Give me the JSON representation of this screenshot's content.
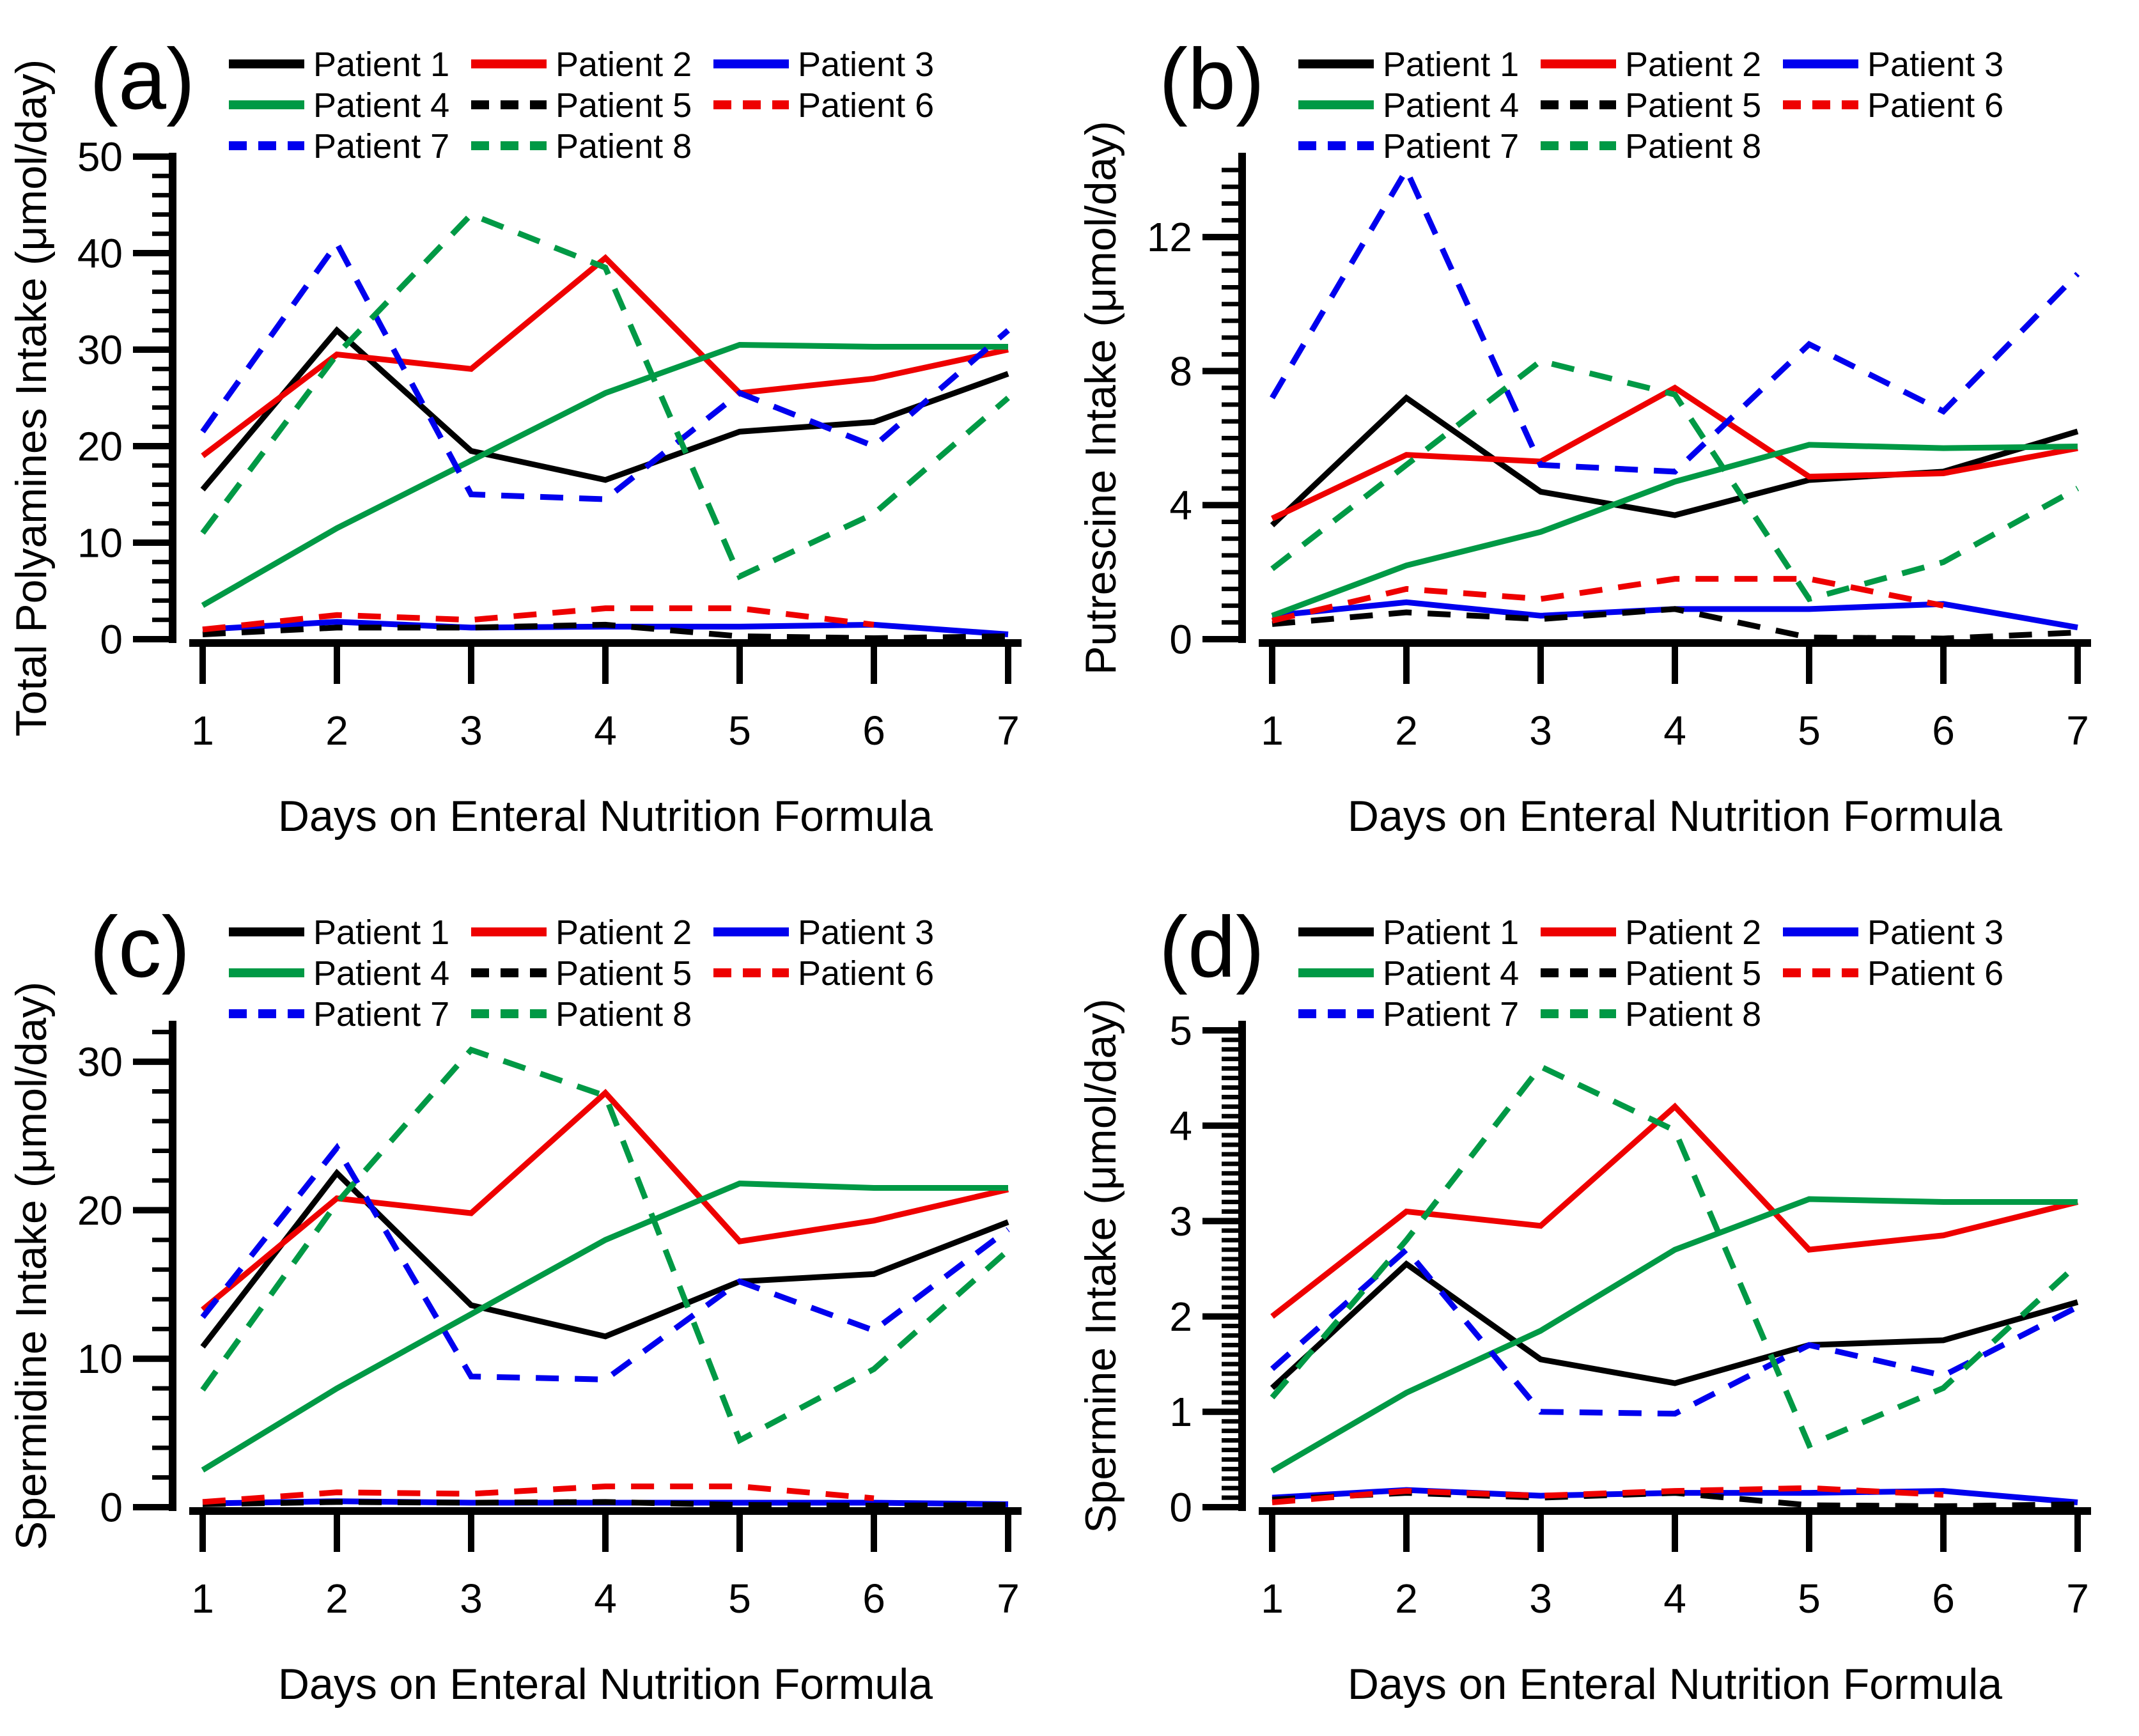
{
  "figure": {
    "background": "#ffffff",
    "xlabel": "Days on Enteral Nutrition Formula",
    "x_tick_labels": [
      "1",
      "2",
      "3",
      "4",
      "5",
      "6",
      "7"
    ]
  },
  "legend": {
    "position": "top",
    "columns": 3,
    "items": [
      {
        "label": "Patient 1",
        "color": "#000000",
        "dashed": false
      },
      {
        "label": "Patient 2",
        "color": "#ee0000",
        "dashed": false
      },
      {
        "label": "Patient 3",
        "color": "#0000ee",
        "dashed": false
      },
      {
        "label": "Patient 4",
        "color": "#009945",
        "dashed": false
      },
      {
        "label": "Patient 5",
        "color": "#000000",
        "dashed": true
      },
      {
        "label": "Patient 6",
        "color": "#ee0000",
        "dashed": true
      },
      {
        "label": "Patient 7",
        "color": "#0000ee",
        "dashed": true
      },
      {
        "label": "Patient 8",
        "color": "#009945",
        "dashed": true
      }
    ]
  },
  "chart_data": [
    {
      "type": "line",
      "panel_letter": "(a)",
      "ylabel": "Total Polyamines Intake (μmol/day)",
      "xlabel": "Days on Enteral Nutrition Formula",
      "x": [
        1,
        2,
        3,
        4,
        5,
        6,
        7
      ],
      "xlim": [
        1,
        7
      ],
      "ylim": [
        0,
        50
      ],
      "axis_top": 50,
      "yticks": [
        0,
        10,
        20,
        30,
        40,
        50
      ],
      "y_minor_step": 2,
      "grid": false,
      "legend_position": "top",
      "series": [
        {
          "name": "Patient 1",
          "color": "#000000",
          "dashed": false,
          "values": [
            15.5,
            32,
            19.5,
            16.5,
            21.5,
            22.5,
            27.5
          ]
        },
        {
          "name": "Patient 2",
          "color": "#ee0000",
          "dashed": false,
          "values": [
            19,
            29.5,
            28,
            39.5,
            25.5,
            27,
            30
          ]
        },
        {
          "name": "Patient 3",
          "color": "#0000ee",
          "dashed": false,
          "values": [
            1,
            1.8,
            1.2,
            1.3,
            1.3,
            1.5,
            0.5
          ]
        },
        {
          "name": "Patient 4",
          "color": "#009945",
          "dashed": false,
          "values": [
            3.5,
            11.5,
            18.5,
            25.5,
            30.5,
            30.3,
            30.3
          ]
        },
        {
          "name": "Patient 5",
          "color": "#000000",
          "dashed": true,
          "values": [
            0.5,
            1.2,
            1.2,
            1.5,
            0.3,
            0.1,
            0.3
          ]
        },
        {
          "name": "Patient 6",
          "color": "#ee0000",
          "dashed": true,
          "values": [
            1,
            2.5,
            2,
            3.2,
            3.2,
            1.5
          ]
        },
        {
          "name": "Patient 7",
          "color": "#0000ee",
          "dashed": true,
          "values": [
            21.5,
            41,
            15,
            14.5,
            25.5,
            20,
            32
          ]
        },
        {
          "name": "Patient 8",
          "color": "#009945",
          "dashed": true,
          "values": [
            11,
            29.5,
            44,
            38.5,
            6.5,
            13,
            25
          ]
        }
      ]
    },
    {
      "type": "line",
      "panel_letter": "(b)",
      "ylabel": "Putrescine Intake (μmol/day)",
      "xlabel": "Days on Enteral Nutrition Formula",
      "x": [
        1,
        2,
        3,
        4,
        5,
        6,
        7
      ],
      "xlim": [
        1,
        7
      ],
      "ylim": [
        0,
        14
      ],
      "axis_top": 14.4,
      "yticks": [
        0,
        4,
        8,
        12
      ],
      "y_minor_step": 0.5,
      "grid": false,
      "legend_position": "top",
      "series": [
        {
          "name": "Patient 1",
          "color": "#000000",
          "dashed": false,
          "values": [
            3.4,
            7.2,
            4.4,
            3.7,
            4.75,
            5,
            6.2
          ]
        },
        {
          "name": "Patient 2",
          "color": "#ee0000",
          "dashed": false,
          "values": [
            3.6,
            5.5,
            5.3,
            7.5,
            4.85,
            4.95,
            5.7
          ]
        },
        {
          "name": "Patient 3",
          "color": "#0000ee",
          "dashed": false,
          "values": [
            0.7,
            1.1,
            0.7,
            0.9,
            0.9,
            1.05,
            0.35
          ]
        },
        {
          "name": "Patient 4",
          "color": "#009945",
          "dashed": false,
          "values": [
            0.7,
            2.2,
            3.2,
            4.7,
            5.8,
            5.7,
            5.75
          ]
        },
        {
          "name": "Patient 5",
          "color": "#000000",
          "dashed": true,
          "values": [
            0.45,
            0.8,
            0.6,
            0.9,
            0.05,
            0.02,
            0.2
          ]
        },
        {
          "name": "Patient 6",
          "color": "#ee0000",
          "dashed": true,
          "values": [
            0.55,
            1.5,
            1.2,
            1.8,
            1.8,
            1
          ]
        },
        {
          "name": "Patient 7",
          "color": "#0000ee",
          "dashed": true,
          "values": [
            7.2,
            14,
            5.2,
            5,
            8.8,
            6.8,
            10.9
          ]
        },
        {
          "name": "Patient 8",
          "color": "#009945",
          "dashed": true,
          "values": [
            2.1,
            5.2,
            8.3,
            7.3,
            1.2,
            2.3,
            4.5
          ]
        }
      ]
    },
    {
      "type": "line",
      "panel_letter": "(c)",
      "ylabel": "Spermidine Intake (μmol/day)",
      "xlabel": "Days on Enteral Nutrition Formula",
      "x": [
        1,
        2,
        3,
        4,
        5,
        6,
        7
      ],
      "xlim": [
        1,
        7
      ],
      "ylim": [
        0,
        32
      ],
      "axis_top": 32.5,
      "yticks": [
        0,
        10,
        20,
        30
      ],
      "y_minor_step": 2,
      "grid": false,
      "legend_position": "top",
      "series": [
        {
          "name": "Patient 1",
          "color": "#000000",
          "dashed": false,
          "values": [
            10.8,
            22.5,
            13.6,
            11.5,
            15.2,
            15.7,
            19.2
          ]
        },
        {
          "name": "Patient 2",
          "color": "#ee0000",
          "dashed": false,
          "values": [
            13.3,
            20.8,
            19.8,
            27.9,
            17.9,
            19.3,
            21.4
          ]
        },
        {
          "name": "Patient 3",
          "color": "#0000ee",
          "dashed": false,
          "values": [
            0.25,
            0.4,
            0.3,
            0.3,
            0.3,
            0.3,
            0.2
          ]
        },
        {
          "name": "Patient 4",
          "color": "#009945",
          "dashed": false,
          "values": [
            2.5,
            8,
            13,
            18,
            21.8,
            21.5,
            21.5
          ]
        },
        {
          "name": "Patient 5",
          "color": "#000000",
          "dashed": true,
          "values": [
            0.2,
            0.35,
            0.3,
            0.35,
            0.15,
            0.1,
            0.15
          ]
        },
        {
          "name": "Patient 6",
          "color": "#ee0000",
          "dashed": true,
          "values": [
            0.35,
            1,
            0.9,
            1.4,
            1.4,
            0.6
          ]
        },
        {
          "name": "Patient 7",
          "color": "#0000ee",
          "dashed": true,
          "values": [
            12.8,
            24.2,
            8.8,
            8.6,
            15.2,
            11.9,
            18.7
          ]
        },
        {
          "name": "Patient 8",
          "color": "#009945",
          "dashed": true,
          "values": [
            7.9,
            20.5,
            30.8,
            27.7,
            4.5,
            9.3,
            17.3
          ]
        }
      ]
    },
    {
      "type": "line",
      "panel_letter": "(d)",
      "ylabel": "Spermine Intake (μmol/day)",
      "xlabel": "Days on Enteral Nutrition Formula",
      "x": [
        1,
        2,
        3,
        4,
        5,
        6,
        7
      ],
      "xlim": [
        1,
        7
      ],
      "ylim": [
        0,
        5
      ],
      "axis_top": 5.06,
      "yticks": [
        0,
        1,
        2,
        3,
        4,
        5
      ],
      "y_minor_step": 0.1,
      "grid": false,
      "legend_position": "top",
      "series": [
        {
          "name": "Patient 1",
          "color": "#000000",
          "dashed": false,
          "values": [
            1.25,
            2.55,
            1.55,
            1.3,
            1.7,
            1.75,
            2.15
          ]
        },
        {
          "name": "Patient 2",
          "color": "#ee0000",
          "dashed": false,
          "values": [
            2,
            3.1,
            2.95,
            4.2,
            2.7,
            2.85,
            3.2
          ]
        },
        {
          "name": "Patient 3",
          "color": "#0000ee",
          "dashed": false,
          "values": [
            0.1,
            0.18,
            0.12,
            0.15,
            0.15,
            0.17,
            0.05
          ]
        },
        {
          "name": "Patient 4",
          "color": "#009945",
          "dashed": false,
          "values": [
            0.38,
            1.2,
            1.85,
            2.7,
            3.23,
            3.2,
            3.2
          ]
        },
        {
          "name": "Patient 5",
          "color": "#000000",
          "dashed": true,
          "values": [
            0.08,
            0.15,
            0.1,
            0.15,
            0.02,
            0.01,
            0.03
          ]
        },
        {
          "name": "Patient 6",
          "color": "#ee0000",
          "dashed": true,
          "values": [
            0.05,
            0.17,
            0.12,
            0.17,
            0.2,
            0.13
          ]
        },
        {
          "name": "Patient 7",
          "color": "#0000ee",
          "dashed": true,
          "values": [
            1.45,
            2.7,
            1,
            0.98,
            1.7,
            1.38,
            2.1
          ]
        },
        {
          "name": "Patient 8",
          "color": "#009945",
          "dashed": true,
          "values": [
            1.15,
            2.8,
            4.62,
            3.95,
            0.65,
            1.25,
            2.55
          ]
        }
      ]
    }
  ]
}
